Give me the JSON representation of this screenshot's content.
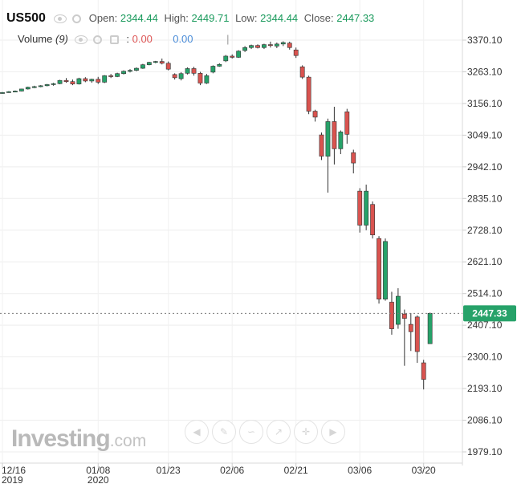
{
  "legend": {
    "symbol": "US500",
    "open_label": "Open:",
    "open": "2344.44",
    "high_label": "High:",
    "high": "2449.71",
    "low_label": "Low:",
    "low": "2344.44",
    "close_label": "Close:",
    "close": "2447.33"
  },
  "volume": {
    "label": "Volume",
    "period": "(9)",
    "value1": "0.00",
    "value2": "0.00"
  },
  "watermark": {
    "brand": "Investing",
    "suffix": ".com"
  },
  "toolbar_icons": [
    "play-back-icon",
    "draw-icon",
    "text-icon",
    "trendline-icon",
    "crosshair-icon",
    "play-forward-icon"
  ],
  "colors": {
    "up": "#26a269",
    "down": "#d9534f",
    "price_tag": "#26a269"
  },
  "chart_data": {
    "type": "candlestick",
    "title": "",
    "yticks": [
      3370.1,
      3263.1,
      3156.1,
      3049.1,
      2942.1,
      2835.1,
      2728.1,
      2621.1,
      2514.1,
      2407.1,
      2300.1,
      2193.1,
      2086.1,
      1979.1
    ],
    "ytick_labels": [
      "3370.10",
      "3263.10",
      "3156.10",
      "3049.10",
      "2942.10",
      "2835.10",
      "2728.10",
      "2621.10",
      "2514.10",
      "2407.10",
      "2300.10",
      "2193.10",
      "2086.10",
      "1979.10"
    ],
    "ylim": [
      1965,
      3410
    ],
    "xticks": [
      {
        "label": "12/16",
        "sub": "2019",
        "index": 0
      },
      {
        "label": "01/08",
        "sub": "2020",
        "index": 15
      },
      {
        "label": "01/23",
        "sub": "",
        "index": 26
      },
      {
        "label": "02/06",
        "sub": "",
        "index": 36
      },
      {
        "label": "02/21",
        "sub": "",
        "index": 46
      },
      {
        "label": "03/06",
        "sub": "",
        "index": 56
      },
      {
        "label": "03/20",
        "sub": "",
        "index": 66
      }
    ],
    "last_price": 2447.33,
    "last_price_label": "2447.33",
    "grid": true,
    "candles": [
      [
        3190,
        3195,
        3189,
        3193
      ],
      [
        3193,
        3198,
        3192,
        3196
      ],
      [
        3196,
        3200,
        3194,
        3198
      ],
      [
        3198,
        3206,
        3197,
        3205
      ],
      [
        3205,
        3213,
        3203,
        3211
      ],
      [
        3211,
        3216,
        3208,
        3213
      ],
      [
        3213,
        3218,
        3211,
        3216
      ],
      [
        3216,
        3222,
        3214,
        3220
      ],
      [
        3220,
        3226,
        3216,
        3223
      ],
      [
        3223,
        3236,
        3221,
        3234
      ],
      [
        3234,
        3242,
        3226,
        3230
      ],
      [
        3230,
        3237,
        3218,
        3222
      ],
      [
        3222,
        3243,
        3220,
        3240
      ],
      [
        3240,
        3245,
        3228,
        3232
      ],
      [
        3232,
        3240,
        3226,
        3238
      ],
      [
        3238,
        3246,
        3222,
        3228
      ],
      [
        3228,
        3252,
        3225,
        3250
      ],
      [
        3250,
        3256,
        3242,
        3247
      ],
      [
        3247,
        3260,
        3245,
        3257
      ],
      [
        3257,
        3268,
        3254,
        3265
      ],
      [
        3265,
        3272,
        3261,
        3268
      ],
      [
        3268,
        3278,
        3265,
        3275
      ],
      [
        3275,
        3290,
        3273,
        3287
      ],
      [
        3287,
        3297,
        3285,
        3295
      ],
      [
        3295,
        3300,
        3292,
        3298
      ],
      [
        3298,
        3308,
        3288,
        3292
      ],
      [
        3292,
        3298,
        3268,
        3272
      ],
      [
        3254,
        3258,
        3237,
        3243
      ],
      [
        3240,
        3262,
        3234,
        3257
      ],
      [
        3258,
        3278,
        3254,
        3274
      ],
      [
        3274,
        3280,
        3250,
        3258
      ],
      [
        3258,
        3263,
        3218,
        3225
      ],
      [
        3225,
        3256,
        3222,
        3250
      ],
      [
        3262,
        3285,
        3258,
        3282
      ],
      [
        3282,
        3292,
        3280,
        3288
      ],
      [
        3300,
        3320,
        3296,
        3316
      ],
      [
        3316,
        3322,
        3308,
        3312
      ],
      [
        3312,
        3336,
        3310,
        3333
      ],
      [
        3335,
        3350,
        3330,
        3345
      ],
      [
        3345,
        3355,
        3340,
        3352
      ],
      [
        3352,
        3356,
        3342,
        3345
      ],
      [
        3345,
        3358,
        3340,
        3355
      ],
      [
        3355,
        3365,
        3345,
        3352
      ],
      [
        3350,
        3362,
        3343,
        3357
      ],
      [
        3357,
        3366,
        3350,
        3362
      ],
      [
        3360,
        3365,
        3338,
        3345
      ],
      [
        3337,
        3345,
        3310,
        3318
      ],
      [
        3280,
        3285,
        3239,
        3245
      ],
      [
        3245,
        3250,
        3120,
        3130
      ],
      [
        3130,
        3135,
        3095,
        3110
      ],
      [
        3050,
        3058,
        2965,
        2978
      ],
      [
        2978,
        3105,
        2855,
        3095
      ],
      [
        3095,
        3145,
        2950,
        3003
      ],
      [
        3003,
        3065,
        2985,
        3060
      ],
      [
        3128,
        3138,
        3020,
        3052
      ],
      [
        2990,
        3000,
        2920,
        2955
      ],
      [
        2860,
        2870,
        2720,
        2745
      ],
      [
        2745,
        2882,
        2728,
        2860
      ],
      [
        2815,
        2825,
        2700,
        2712
      ],
      [
        2700,
        2708,
        2480,
        2495
      ],
      [
        2495,
        2700,
        2490,
        2690
      ],
      [
        2485,
        2520,
        2375,
        2395
      ],
      [
        2410,
        2532,
        2395,
        2505
      ],
      [
        2445,
        2460,
        2270,
        2430
      ],
      [
        2410,
        2448,
        2320,
        2385
      ],
      [
        2435,
        2440,
        2280,
        2318
      ],
      [
        2280,
        2290,
        2190,
        2224
      ],
      [
        2344.44,
        2449.71,
        2344.44,
        2447.33
      ]
    ]
  }
}
